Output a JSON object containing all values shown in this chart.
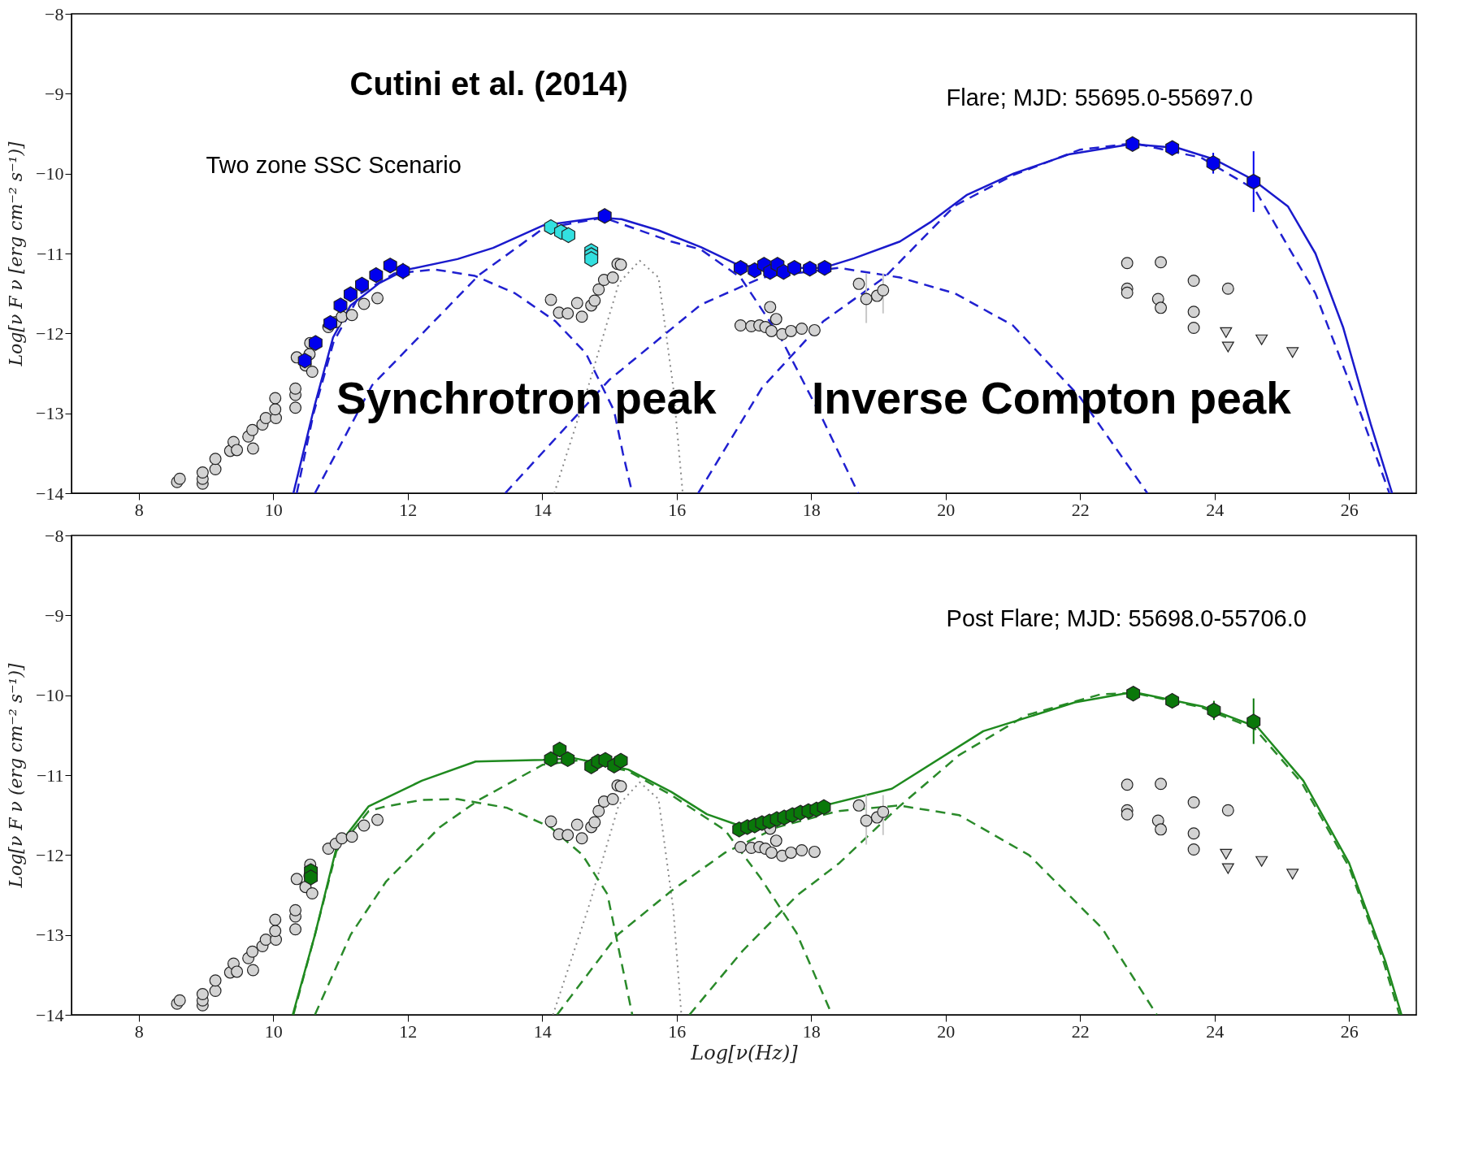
{
  "chart_data": [
    {
      "type": "scatter",
      "ylabel": "Log[ν F ν [erg cm⁻² s⁻¹)]",
      "xlim": [
        7,
        27
      ],
      "ylim": [
        -14,
        -8
      ],
      "xticks": [
        8,
        10,
        12,
        14,
        16,
        18,
        20,
        22,
        24,
        26
      ],
      "yticks": [
        -14,
        -13,
        -12,
        -11,
        -10,
        -9,
        -8
      ],
      "grid": false,
      "annotations": [
        "Cutini et al. (2014)",
        "Flare; MJD: 55695.0-55697.0",
        "Two zone SSC Scenario",
        "Synchrotron peak",
        "Inverse Compton peak"
      ],
      "series": [
        {
          "type": "line",
          "line_style": "dotted",
          "color": "#888888",
          "x": [
            14.18,
            14.68,
            15.14,
            15.45,
            15.73,
            15.95,
            16.09
          ],
          "values": [
            -14,
            -12.68,
            -11.37,
            -11.09,
            -11.3,
            -12.68,
            -14
          ]
        },
        {
          "type": "line",
          "line_style": "dashed",
          "color": "#2020d0",
          "x": [
            10.35,
            10.6,
            10.9,
            11.3,
            11.8,
            12.4,
            13.0,
            13.6,
            14.2,
            14.65,
            15.07,
            15.2,
            15.34
          ],
          "values": [
            -14,
            -13.0,
            -12.1,
            -11.5,
            -11.25,
            -11.2,
            -11.28,
            -11.5,
            -11.85,
            -12.25,
            -12.97,
            -13.5,
            -14
          ]
        },
        {
          "type": "line",
          "line_style": "dashed",
          "color": "#2020d0",
          "x": [
            10.62,
            11.47,
            13.06,
            14.01,
            14.91,
            15.92,
            16.36,
            16.95,
            17.55,
            18.18,
            18.7
          ],
          "values": [
            -14,
            -12.65,
            -11.27,
            -10.69,
            -10.55,
            -10.85,
            -10.95,
            -11.3,
            -12.06,
            -13.09,
            -14
          ]
        },
        {
          "type": "line",
          "line_style": "dashed",
          "color": "#2020d0",
          "x": [
            13.45,
            15.0,
            16.36,
            17.27,
            18.41,
            19.32,
            20.14,
            21.0,
            22.0,
            23.0
          ],
          "values": [
            -14,
            -12.58,
            -11.64,
            -11.3,
            -11.18,
            -11.3,
            -11.5,
            -11.9,
            -12.8,
            -14
          ]
        },
        {
          "type": "line",
          "line_style": "dashed",
          "color": "#2020d0",
          "x": [
            16.32,
            17.27,
            18.18,
            19.09,
            20.14,
            21.0,
            22.0,
            22.8,
            23.8,
            24.6,
            25.5,
            26.0,
            26.6
          ],
          "values": [
            -14,
            -12.68,
            -11.85,
            -11.3,
            -10.4,
            -10.02,
            -9.7,
            -9.62,
            -9.8,
            -10.2,
            -11.5,
            -12.6,
            -14
          ]
        },
        {
          "type": "line",
          "line_style": "solid",
          "color": "#1a1acc",
          "x": [
            10.3,
            10.62,
            10.89,
            11.15,
            11.58,
            11.95,
            12.74,
            13.27,
            14.01,
            14.86,
            15.18,
            15.73,
            16.36,
            16.91,
            17.27,
            18.18,
            18.64,
            19.32,
            19.77,
            20.31,
            21.01,
            21.83,
            22.77,
            23.46,
            23.99,
            24.56,
            25.09,
            25.5,
            25.91,
            26.32,
            26.64
          ],
          "values": [
            -14,
            -12.89,
            -12.05,
            -11.65,
            -11.37,
            -11.21,
            -11.07,
            -10.93,
            -10.65,
            -10.55,
            -10.57,
            -10.71,
            -10.92,
            -11.14,
            -11.18,
            -11.18,
            -11.06,
            -10.85,
            -10.61,
            -10.27,
            -10.0,
            -9.76,
            -9.63,
            -9.68,
            -9.82,
            -10.07,
            -10.41,
            -11.0,
            -11.92,
            -13.13,
            -14
          ]
        },
        {
          "marker": "circle",
          "color": "#d3d3d3",
          "x": [
            8.57,
            8.61,
            8.95,
            8.95,
            8.95,
            9.14,
            9.14,
            9.36,
            9.41,
            9.46,
            9.63,
            9.7,
            9.69,
            9.84,
            9.89,
            10.04,
            10.03,
            10.03,
            10.33,
            10.33,
            10.33,
            10.35,
            10.48,
            10.54,
            10.58,
            10.55,
            10.82,
            10.93,
            11.02,
            11.17,
            11.35,
            11.55,
            14.13,
            14.25,
            14.38,
            14.52,
            14.59,
            14.73,
            14.78,
            14.84,
            14.92,
            15.05,
            15.12,
            15.17,
            16.95,
            17.11,
            17.23,
            17.39,
            17.32,
            17.48,
            17.41,
            17.57,
            17.7,
            17.86,
            18.05,
            22.7,
            22.7,
            22.7,
            23.2,
            23.16,
            23.2,
            23.69,
            23.69,
            23.69,
            24.2
          ],
          "values": [
            -13.86,
            -13.82,
            -13.88,
            -13.82,
            -13.74,
            -13.7,
            -13.57,
            -13.47,
            -13.36,
            -13.46,
            -13.29,
            -13.44,
            -13.21,
            -13.14,
            -13.06,
            -13.06,
            -12.95,
            -12.81,
            -12.93,
            -12.77,
            -12.69,
            -12.3,
            -12.4,
            -12.26,
            -12.48,
            -12.12,
            -11.92,
            -11.86,
            -11.79,
            -11.77,
            -11.63,
            -11.56,
            -11.58,
            -11.74,
            -11.75,
            -11.62,
            -11.79,
            -11.65,
            -11.59,
            -11.45,
            -11.33,
            -11.3,
            -11.13,
            -11.14,
            -11.9,
            -11.91,
            -11.9,
            -11.67,
            -11.92,
            -11.82,
            -11.97,
            -12.01,
            -11.97,
            -11.94,
            -11.96,
            -11.12,
            -11.44,
            -11.49,
            -11.11,
            -11.57,
            -11.68,
            -11.34,
            -11.73,
            -11.93,
            -11.44
          ]
        },
        {
          "marker": "circle",
          "color": "#d3d3d3",
          "x": [
            18.71,
            18.82,
            18.98,
            19.07
          ],
          "values": [
            -11.38,
            -11.57,
            -11.53,
            -11.46
          ],
          "errors": [
            null,
            [
              -11.87,
              -11.25
            ],
            null,
            [
              -11.75,
              -11.25
            ]
          ]
        },
        {
          "marker": "triangle",
          "color": "#d3d3d3",
          "x": [
            24.17,
            24.2,
            24.7,
            25.16
          ],
          "values": [
            -11.99,
            -12.17,
            -12.08,
            -12.24
          ]
        },
        {
          "color": "#33e0e0",
          "x": [
            14.13,
            14.28,
            14.39,
            14.73,
            14.73,
            14.73
          ],
          "values": [
            -10.67,
            -10.73,
            -10.77,
            -10.97,
            -11.02,
            -11.07
          ]
        },
        {
          "color": "#0000ee",
          "x": [
            10.47,
            10.63,
            10.85,
            11.0,
            11.15,
            11.32,
            11.53,
            11.74,
            11.93,
            14.93,
            16.95,
            17.16,
            17.3,
            17.39,
            17.5,
            17.59,
            17.75,
            17.98,
            18.2,
            22.78,
            23.37,
            23.98,
            24.58
          ],
          "values": [
            -12.34,
            -12.12,
            -11.87,
            -11.65,
            -11.51,
            -11.39,
            -11.27,
            -11.15,
            -11.22,
            -10.53,
            -11.18,
            -11.21,
            -11.14,
            -11.23,
            -11.14,
            -11.23,
            -11.18,
            -11.19,
            -11.18,
            -9.63,
            -9.68,
            -9.87,
            -10.1
          ],
          "errors": [
            null,
            null,
            null,
            null,
            null,
            null,
            null,
            null,
            [
              -11.32,
              -11.12
            ],
            null,
            null,
            null,
            null,
            null,
            null,
            null,
            null,
            null,
            null,
            null,
            null,
            [
              -10.0,
              -9.74
            ],
            [
              -10.48,
              -9.72
            ]
          ]
        }
      ]
    },
    {
      "type": "scatter",
      "xlabel": "Log[ν(Hz)]",
      "ylabel": "Log[ν F ν (erg cm⁻² s⁻¹)]",
      "xlim": [
        7,
        27
      ],
      "ylim": [
        -14,
        -8
      ],
      "xticks": [
        8,
        10,
        12,
        14,
        16,
        18,
        20,
        22,
        24,
        26
      ],
      "yticks": [
        -14,
        -13,
        -12,
        -11,
        -10,
        -9,
        -8
      ],
      "grid": false,
      "annotations": [
        "Post Flare; MJD: 55698.0-55706.0"
      ],
      "series": [
        {
          "type": "line",
          "line_style": "dotted",
          "color": "#888888",
          "x": [
            14.16,
            14.68,
            15.14,
            15.45,
            15.73,
            15.95,
            16.07
          ],
          "values": [
            -14,
            -12.68,
            -11.37,
            -11.09,
            -11.3,
            -12.68,
            -14
          ]
        },
        {
          "type": "line",
          "line_style": "dashed",
          "color": "#2a8a2a",
          "x": [
            10.3,
            10.62,
            10.94,
            11.42,
            11.63,
            12.21,
            12.74,
            13.48,
            14.12,
            14.6,
            14.97,
            15.34
          ],
          "values": [
            -14,
            -13.0,
            -11.95,
            -11.45,
            -11.4,
            -11.31,
            -11.3,
            -11.41,
            -11.65,
            -12.0,
            -12.49,
            -14
          ]
        },
        {
          "type": "line",
          "line_style": "dashed",
          "color": "#2a8a2a",
          "x": [
            10.62,
            11.15,
            11.68,
            12.48,
            13.06,
            14.01,
            14.6,
            15.28,
            15.92,
            16.72,
            17.25,
            17.78,
            18.31
          ],
          "values": [
            -14,
            -13.0,
            -12.33,
            -11.65,
            -11.31,
            -10.87,
            -10.81,
            -10.95,
            -11.25,
            -11.69,
            -12.29,
            -12.97,
            -14
          ]
        },
        {
          "type": "line",
          "line_style": "dashed",
          "color": "#2a8a2a",
          "x": [
            14.22,
            15.12,
            15.92,
            16.72,
            17.5,
            18.4,
            19.3,
            20.2,
            21.24,
            22.33,
            23.14
          ],
          "values": [
            -14,
            -13.0,
            -12.45,
            -11.97,
            -11.65,
            -11.45,
            -11.38,
            -11.5,
            -12.0,
            -12.92,
            -14
          ]
        },
        {
          "type": "line",
          "line_style": "dashed",
          "color": "#2a8a2a",
          "x": [
            16.19,
            16.98,
            17.8,
            18.42,
            19.3,
            20.2,
            21.2,
            22.3,
            22.8,
            23.8,
            24.6,
            25.3,
            26.0,
            26.5,
            26.75
          ],
          "values": [
            -14,
            -13.2,
            -12.5,
            -12.1,
            -11.4,
            -10.75,
            -10.25,
            -9.99,
            -9.97,
            -10.15,
            -10.42,
            -11.1,
            -12.15,
            -13.3,
            -14
          ]
        },
        {
          "type": "line",
          "line_style": "solid",
          "color": "#1f8a1f",
          "x": [
            10.29,
            10.62,
            10.94,
            11.42,
            12.21,
            13.01,
            14.01,
            14.49,
            15.28,
            15.92,
            16.45,
            16.93,
            18.2,
            19.2,
            20.56,
            21.92,
            22.79,
            23.82,
            24.64,
            25.32,
            26.0,
            26.54,
            26.78
          ],
          "values": [
            -14,
            -13.0,
            -11.91,
            -11.39,
            -11.07,
            -10.83,
            -10.81,
            -10.79,
            -10.93,
            -11.21,
            -11.49,
            -11.63,
            -11.38,
            -11.17,
            -10.45,
            -10.09,
            -9.96,
            -10.14,
            -10.4,
            -11.07,
            -12.1,
            -13.33,
            -14
          ]
        },
        {
          "marker": "circle",
          "color": "#d3d3d3",
          "x": [
            8.57,
            8.61,
            8.95,
            8.95,
            8.95,
            9.14,
            9.14,
            9.36,
            9.41,
            9.46,
            9.63,
            9.7,
            9.69,
            9.84,
            9.89,
            10.04,
            10.03,
            10.03,
            10.33,
            10.33,
            10.33,
            10.35,
            10.48,
            10.54,
            10.58,
            10.55,
            10.82,
            10.93,
            11.02,
            11.17,
            11.35,
            11.55,
            14.13,
            14.25,
            14.38,
            14.52,
            14.59,
            14.73,
            14.78,
            14.84,
            14.92,
            15.05,
            15.12,
            15.17,
            16.95,
            17.11,
            17.23,
            17.39,
            17.32,
            17.48,
            17.41,
            17.57,
            17.7,
            17.86,
            18.05,
            22.7,
            22.7,
            22.7,
            23.2,
            23.16,
            23.2,
            23.69,
            23.69,
            23.69,
            24.2
          ],
          "values": [
            -13.86,
            -13.82,
            -13.88,
            -13.82,
            -13.74,
            -13.7,
            -13.57,
            -13.47,
            -13.36,
            -13.46,
            -13.29,
            -13.44,
            -13.21,
            -13.14,
            -13.06,
            -13.06,
            -12.95,
            -12.81,
            -12.93,
            -12.77,
            -12.69,
            -12.3,
            -12.4,
            -12.26,
            -12.48,
            -12.12,
            -11.92,
            -11.86,
            -11.79,
            -11.77,
            -11.63,
            -11.56,
            -11.58,
            -11.74,
            -11.75,
            -11.62,
            -11.79,
            -11.65,
            -11.59,
            -11.45,
            -11.33,
            -11.3,
            -11.13,
            -11.14,
            -11.9,
            -11.91,
            -11.9,
            -11.67,
            -11.92,
            -11.82,
            -11.97,
            -12.01,
            -11.97,
            -11.94,
            -11.96,
            -11.12,
            -11.44,
            -11.49,
            -11.11,
            -11.57,
            -11.68,
            -11.34,
            -11.73,
            -11.93,
            -11.44
          ]
        },
        {
          "marker": "circle",
          "color": "#d3d3d3",
          "x": [
            18.71,
            18.82,
            18.98,
            19.07
          ],
          "values": [
            -11.38,
            -11.57,
            -11.53,
            -11.46
          ],
          "errors": [
            null,
            [
              -11.87,
              -11.25
            ],
            null,
            [
              -11.75,
              -11.25
            ]
          ]
        },
        {
          "marker": "triangle",
          "color": "#d3d3d3",
          "x": [
            24.17,
            24.2,
            24.7,
            25.16
          ],
          "values": [
            -11.99,
            -12.17,
            -12.08,
            -12.24
          ]
        },
        {
          "color": "#0a780a",
          "x": [
            10.56,
            10.56,
            14.13,
            14.26,
            14.38,
            14.73,
            14.83,
            14.94,
            15.07,
            15.17,
            16.93,
            17.05,
            17.16,
            17.27,
            17.38,
            17.49,
            17.6,
            17.72,
            17.84,
            17.96,
            18.08,
            18.19,
            22.79,
            23.37,
            23.99,
            24.58
          ],
          "values": [
            -12.2,
            -12.28,
            -10.8,
            -10.68,
            -10.8,
            -10.89,
            -10.83,
            -10.81,
            -10.88,
            -10.82,
            -11.68,
            -11.65,
            -11.63,
            -11.6,
            -11.58,
            -11.55,
            -11.53,
            -11.5,
            -11.47,
            -11.45,
            -11.43,
            -11.4,
            -9.98,
            -10.07,
            -10.19,
            -10.33
          ],
          "errors": [
            null,
            null,
            null,
            null,
            null,
            null,
            null,
            null,
            null,
            null,
            null,
            null,
            null,
            null,
            null,
            null,
            null,
            null,
            null,
            null,
            null,
            null,
            null,
            null,
            [
              -10.31,
              -10.07
            ],
            [
              -10.61,
              -10.04
            ]
          ]
        }
      ]
    }
  ]
}
